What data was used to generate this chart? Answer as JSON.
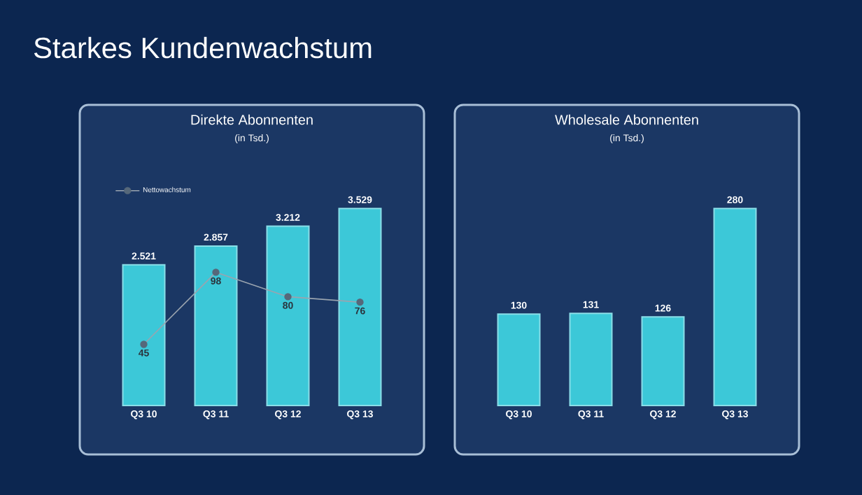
{
  "chart_data": [
    {
      "type": "other",
      "title": "Starkes Kundenwachstum"
    },
    {
      "type": "bar",
      "title": "Direkte Abonnenten",
      "subtitle": "(in Tsd.)",
      "categories": [
        "Q3 10",
        "Q3 11",
        "Q3 12",
        "Q3 13"
      ],
      "tick_labels": "x",
      "legend": "top left",
      "series": [
        {
          "color": "#3cc8d8",
          "values": [
            2521,
            2857,
            3212,
            3529
          ],
          "value_labels": [
            "2.521",
            "2.857",
            "3.212",
            "3.529"
          ]
        },
        {
          "type": "line",
          "axis": "y2",
          "name": "Nettowachstum",
          "color": "#56687a",
          "marker": "circle",
          "values": [
            45,
            98,
            80,
            76
          ],
          "value_labels": [
            "45",
            "98",
            "80",
            "76"
          ]
        }
      ]
    },
    {
      "type": "bar",
      "title": "Wholesale Abonnenten",
      "subtitle": "(in Tsd.)",
      "categories": [
        "Q3 10",
        "Q3 11",
        "Q3 12",
        "Q3 13"
      ],
      "tick_labels": "x",
      "series": [
        {
          "color": "#3cc8d8",
          "values": [
            130,
            131,
            126,
            280
          ],
          "value_labels": [
            "130",
            "131",
            "126",
            "280"
          ]
        }
      ]
    }
  ]
}
